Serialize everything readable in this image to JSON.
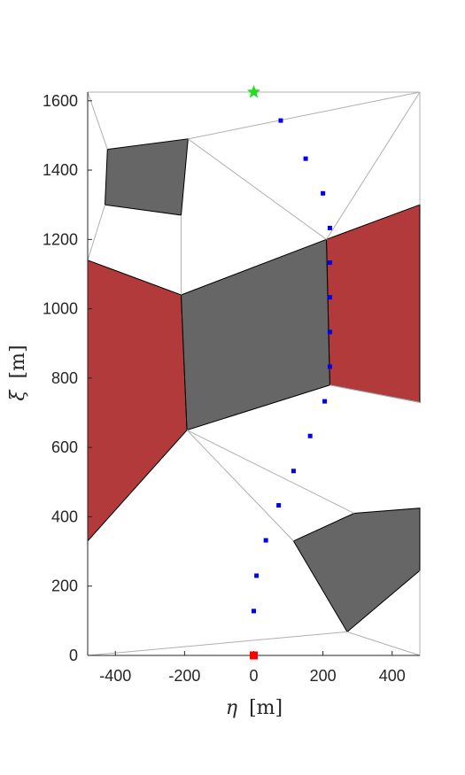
{
  "chart_data": {
    "type": "scatter",
    "title": "",
    "xlabel_symbol": "η",
    "xlabel_unit": "[m]",
    "ylabel_symbol": "ξ",
    "ylabel_unit": "[m]",
    "xlim": [
      -480,
      480
    ],
    "ylim": [
      0,
      1625
    ],
    "xticks": [
      -400,
      -200,
      0,
      200,
      400
    ],
    "yticks": [
      0,
      200,
      400,
      600,
      800,
      1000,
      1200,
      1400,
      1600
    ],
    "grid": false,
    "regions": [
      {
        "kind": "obstacle-red",
        "color": "#b33a3a",
        "polygon": [
          [
            -480,
            1140
          ],
          [
            -210,
            1040
          ],
          [
            -193,
            650
          ],
          [
            -480,
            330
          ]
        ]
      },
      {
        "kind": "obstacle-red",
        "color": "#b33a3a",
        "polygon": [
          [
            210,
            1200
          ],
          [
            480,
            1300
          ],
          [
            480,
            730
          ],
          [
            220,
            780
          ]
        ]
      },
      {
        "kind": "obstacle-gray",
        "color": "#666666",
        "polygon": [
          [
            -423,
            1460
          ],
          [
            -190,
            1490
          ],
          [
            -210,
            1270
          ],
          [
            -430,
            1300
          ]
        ]
      },
      {
        "kind": "obstacle-gray",
        "color": "#666666",
        "polygon": [
          [
            -210,
            1040
          ],
          [
            210,
            1200
          ],
          [
            220,
            780
          ],
          [
            -193,
            650
          ]
        ]
      },
      {
        "kind": "obstacle-gray",
        "color": "#666666",
        "polygon": [
          [
            115,
            330
          ],
          [
            290,
            410
          ],
          [
            480,
            425
          ],
          [
            480,
            245
          ],
          [
            270,
            68
          ]
        ]
      }
    ],
    "edges": [
      [
        [
          -480,
          1625
        ],
        [
          -423,
          1460
        ]
      ],
      [
        [
          -480,
          1625
        ],
        [
          480,
          1625
        ]
      ],
      [
        [
          -190,
          1490
        ],
        [
          480,
          1625
        ]
      ],
      [
        [
          -190,
          1490
        ],
        [
          210,
          1200
        ]
      ],
      [
        [
          -210,
          1270
        ],
        [
          -210,
          1040
        ]
      ],
      [
        [
          -430,
          1300
        ],
        [
          -480,
          1140
        ]
      ],
      [
        [
          210,
          1200
        ],
        [
          480,
          1625
        ]
      ],
      [
        [
          480,
          1625
        ],
        [
          480,
          1300
        ]
      ],
      [
        [
          220,
          780
        ],
        [
          480,
          730
        ]
      ],
      [
        [
          -193,
          650
        ],
        [
          290,
          410
        ]
      ],
      [
        [
          -193,
          650
        ],
        [
          115,
          330
        ]
      ],
      [
        [
          -480,
          0
        ],
        [
          270,
          68
        ]
      ],
      [
        [
          270,
          68
        ],
        [
          480,
          0
        ]
      ],
      [
        [
          480,
          245
        ],
        [
          480,
          0
        ]
      ],
      [
        [
          -480,
          330
        ],
        [
          -480,
          0
        ]
      ],
      [
        [
          -480,
          0
        ],
        [
          480,
          0
        ]
      ],
      [
        [
          -480,
          1625
        ],
        [
          -480,
          1140
        ]
      ]
    ],
    "series": [
      {
        "marker": "square",
        "color": "#0000ee",
        "points": [
          [
            0,
            128
          ],
          [
            8,
            230
          ],
          [
            35,
            332
          ],
          [
            72,
            433
          ],
          [
            115,
            532
          ],
          [
            163,
            633
          ],
          [
            205,
            733
          ],
          [
            220,
            833
          ],
          [
            220,
            933
          ],
          [
            220,
            1033
          ],
          [
            220,
            1133
          ],
          [
            220,
            1233
          ],
          [
            200,
            1333
          ],
          [
            150,
            1433
          ],
          [
            78,
            1543
          ]
        ]
      }
    ],
    "start": {
      "marker": "square",
      "color": "#ff0000",
      "x": 0,
      "y": 0
    },
    "goal": {
      "marker": "star",
      "color": "#22dd22",
      "x": 0,
      "y": 1625
    }
  }
}
